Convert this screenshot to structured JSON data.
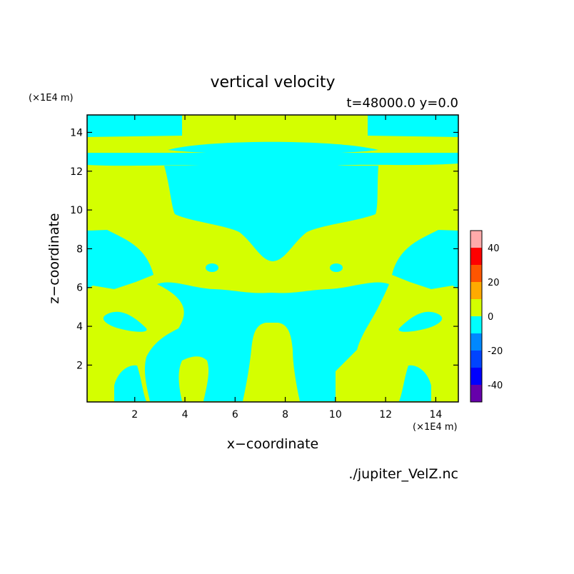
{
  "chart_data": {
    "type": "heatmap",
    "title": "vertical velocity",
    "subtitle": "t=48000.0 y=0.0",
    "xlabel": "x−coordinate",
    "ylabel": "z−coordinate",
    "x_unit": "(×1E4 m)",
    "y_unit": "(×1E4 m)",
    "source_file": "./jupiter_VelZ.nc",
    "xlim": [
      0.1,
      14.9
    ],
    "ylim": [
      0.1,
      14.9
    ],
    "x_ticks": [
      2,
      4,
      6,
      8,
      10,
      12,
      14
    ],
    "y_ticks": [
      2,
      4,
      6,
      8,
      10,
      12,
      14
    ],
    "colorbar": {
      "range": [
        -50,
        50
      ],
      "ticks": [
        40,
        20,
        0,
        -20,
        -40
      ],
      "levels": [
        {
          "from": 40,
          "to": 50,
          "color": "#ffaaaa"
        },
        {
          "from": 30,
          "to": 40,
          "color": "#ff0000"
        },
        {
          "from": 20,
          "to": 30,
          "color": "#ff5500"
        },
        {
          "from": 10,
          "to": 20,
          "color": "#ffaa00"
        },
        {
          "from": 0,
          "to": 10,
          "color": "#d4ff00"
        },
        {
          "from": -10,
          "to": 0,
          "color": "#00ffff"
        },
        {
          "from": -20,
          "to": -10,
          "color": "#0088ff"
        },
        {
          "from": -30,
          "to": -20,
          "color": "#0044ff"
        },
        {
          "from": -40,
          "to": -30,
          "color": "#0000ff"
        },
        {
          "from": -50,
          "to": -40,
          "color": "#6600aa"
        }
      ]
    },
    "field_colors": {
      "positive_0_10": "#d4ff00",
      "negative_-10_0": "#00ffff"
    }
  }
}
